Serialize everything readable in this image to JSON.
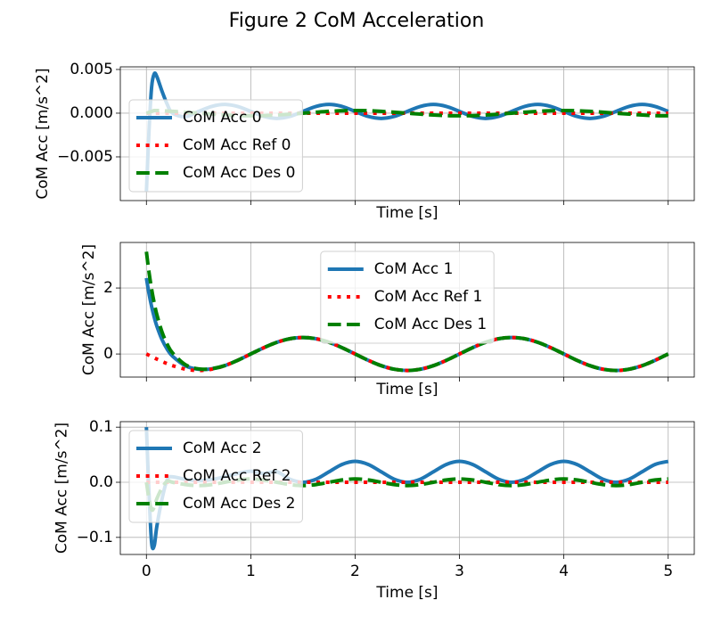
{
  "title": "Figure 2 CoM Acceleration",
  "chart_data": [
    {
      "type": "line",
      "xlabel": "Time [s]",
      "ylabel": "CoM Acc [m/s^2]",
      "x": [
        0,
        0.025,
        0.05,
        0.075,
        0.1,
        0.15,
        0.2,
        0.25,
        0.375,
        0.5,
        0.625,
        0.75,
        0.875,
        1,
        1.125,
        1.25,
        1.375,
        1.5,
        1.625,
        1.75,
        1.875,
        2,
        2.125,
        2.25,
        2.375,
        2.5,
        2.625,
        2.75,
        2.875,
        3,
        3.125,
        3.25,
        3.375,
        3.5,
        3.625,
        3.75,
        3.875,
        4,
        4.125,
        4.25,
        4.375,
        4.5,
        4.625,
        4.75,
        4.875,
        5
      ],
      "series": [
        {
          "name": "CoM Acc 0",
          "color": "#1f77b4",
          "dash": "solid",
          "values": [
            -0.009,
            -0.002,
            0.003,
            0.0045,
            0.0042,
            0.0025,
            0.001,
            0,
            -0.0004,
            0.0002,
            0.00077,
            0.001,
            0.00077,
            0.0002,
            -0.00037,
            -0.0006,
            -0.00037,
            0.0002,
            0.00077,
            0.001,
            0.00077,
            0.0002,
            -0.00037,
            -0.0006,
            -0.00037,
            0.0002,
            0.00077,
            0.001,
            0.00077,
            0.0002,
            -0.00037,
            -0.0006,
            -0.00037,
            0.0002,
            0.00077,
            0.001,
            0.00077,
            0.0002,
            -0.00037,
            -0.0006,
            -0.00037,
            0.0002,
            0.00077,
            0.001,
            0.00077,
            0.0002
          ]
        },
        {
          "name": "CoM Acc Ref 0",
          "color": "#ff0000",
          "dash": "dotted",
          "values": [
            0,
            0,
            0,
            0,
            0,
            0,
            0,
            0,
            0,
            0,
            0,
            0,
            0,
            0,
            0,
            0,
            0,
            0,
            0,
            0,
            0,
            0,
            0,
            0,
            0,
            0,
            0,
            0,
            0,
            0,
            0,
            0,
            0,
            0,
            0,
            0,
            0,
            0,
            0,
            0,
            0,
            0,
            0,
            0,
            0,
            0
          ]
        },
        {
          "name": "CoM Acc Des 0",
          "color": "#008000",
          "dash": "dashed",
          "values": [
            0,
            0.0001,
            0.0002,
            0.0003,
            0.0003,
            0.0003,
            0.00024,
            0.00021,
            0.00011,
            0,
            -0.00011,
            -0.00021,
            -0.00028,
            -0.0003,
            -0.00028,
            -0.00021,
            -0.00011,
            0,
            0.00011,
            0.00021,
            0.00028,
            0.0003,
            0.00028,
            0.00021,
            0.00011,
            0,
            -0.00011,
            -0.00021,
            -0.00028,
            -0.0003,
            -0.00028,
            -0.00021,
            -0.00011,
            0,
            0.00011,
            0.00021,
            0.00028,
            0.0003,
            0.00028,
            0.00021,
            0.00011,
            0,
            -0.00011,
            -0.00021,
            -0.00028,
            -0.0003
          ]
        }
      ],
      "xlim": [
        -0.25,
        5.25
      ],
      "ylim": [
        -0.01,
        0.0053
      ],
      "xticks": [
        0,
        1,
        2,
        3,
        4,
        5
      ],
      "yticks": [
        {
          "value": -0.005,
          "label": "−0.005"
        },
        {
          "value": 0,
          "label": "0.000"
        },
        {
          "value": 0.005,
          "label": "0.005"
        }
      ],
      "show_xtick_labels": false,
      "grid": true,
      "legend_loc": "lower left"
    },
    {
      "type": "line",
      "xlabel": "Time [s]",
      "ylabel": "CoM Acc [m/s^2]",
      "x": [
        0,
        0.025,
        0.05,
        0.075,
        0.1,
        0.15,
        0.2,
        0.25,
        0.375,
        0.5,
        0.625,
        0.75,
        0.875,
        1,
        1.125,
        1.25,
        1.375,
        1.5,
        1.625,
        1.75,
        1.875,
        2,
        2.125,
        2.25,
        2.375,
        2.5,
        2.625,
        2.75,
        2.875,
        3,
        3.125,
        3.25,
        3.375,
        3.5,
        3.625,
        3.75,
        3.875,
        4,
        4.125,
        4.25,
        4.375,
        4.5,
        4.625,
        4.75,
        4.875,
        5
      ],
      "series": [
        {
          "name": "CoM Acc 1",
          "color": "#1f77b4",
          "dash": "solid",
          "values": [
            2.3,
            1.828,
            1.438,
            1.114,
            0.846,
            0.433,
            0.141,
            -0.067,
            -0.361,
            -0.464,
            -0.449,
            -0.354,
            -0.191,
            0,
            0.191,
            0.354,
            0.462,
            0.5,
            0.462,
            0.354,
            0.191,
            0,
            -0.191,
            -0.354,
            -0.462,
            -0.5,
            -0.462,
            -0.354,
            -0.191,
            0,
            0.191,
            0.354,
            0.462,
            0.5,
            0.462,
            0.354,
            0.191,
            0,
            -0.191,
            -0.354,
            -0.462,
            -0.5,
            -0.462,
            -0.354,
            -0.191,
            0
          ]
        },
        {
          "name": "CoM Acc Ref 1",
          "color": "#ff0000",
          "dash": "dotted",
          "values": [
            0,
            -0.039,
            -0.078,
            -0.117,
            -0.155,
            -0.227,
            -0.294,
            -0.354,
            -0.462,
            -0.5,
            -0.462,
            -0.354,
            -0.191,
            0,
            0.191,
            0.354,
            0.462,
            0.5,
            0.462,
            0.354,
            0.191,
            0,
            -0.191,
            -0.354,
            -0.462,
            -0.5,
            -0.462,
            -0.354,
            -0.191,
            0,
            0.191,
            0.354,
            0.462,
            0.5,
            0.462,
            0.354,
            0.191,
            0,
            -0.191,
            -0.354,
            -0.462,
            -0.5,
            -0.462,
            -0.354,
            -0.191,
            0
          ]
        },
        {
          "name": "CoM Acc Des 1",
          "color": "#008000",
          "dash": "dashed",
          "values": [
            3.1,
            2.478,
            1.965,
            1.542,
            1.194,
            0.663,
            0.292,
            0.034,
            -0.326,
            -0.452,
            -0.445,
            -0.354,
            -0.191,
            0,
            0.191,
            0.354,
            0.462,
            0.5,
            0.462,
            0.354,
            0.191,
            0,
            -0.191,
            -0.354,
            -0.462,
            -0.5,
            -0.462,
            -0.354,
            -0.191,
            0,
            0.191,
            0.354,
            0.462,
            0.5,
            0.462,
            0.354,
            0.191,
            0,
            -0.191,
            -0.354,
            -0.462,
            -0.5,
            -0.462,
            -0.354,
            -0.191,
            0
          ]
        }
      ],
      "xlim": [
        -0.25,
        5.25
      ],
      "ylim": [
        -0.7,
        3.38
      ],
      "xticks": [
        0,
        1,
        2,
        3,
        4,
        5
      ],
      "yticks": [
        0,
        2
      ],
      "show_xtick_labels": false,
      "grid": true,
      "legend_loc": "upper center"
    },
    {
      "type": "line",
      "xlabel": "Time [s]",
      "ylabel": "CoM Acc [m/s^2]",
      "x": [
        0,
        0.025,
        0.05,
        0.075,
        0.1,
        0.15,
        0.2,
        0.25,
        0.375,
        0.5,
        0.625,
        0.75,
        0.875,
        1,
        1.125,
        1.25,
        1.375,
        1.5,
        1.625,
        1.75,
        1.875,
        2,
        2.125,
        2.25,
        2.375,
        2.5,
        2.625,
        2.75,
        2.875,
        3,
        3.125,
        3.25,
        3.375,
        3.5,
        3.625,
        3.75,
        3.875,
        4,
        4.125,
        4.25,
        4.375,
        4.5,
        4.625,
        4.75,
        4.875,
        5
      ],
      "series": [
        {
          "name": "CoM Acc 2",
          "color": "#1f77b4",
          "dash": "solid",
          "values": [
            0.1,
            -0.02,
            -0.11,
            -0.115,
            -0.08,
            -0.03,
            0.005,
            0.01,
            0.005,
            0.003,
            0.005,
            0.01,
            0.016,
            0.02,
            0.016,
            0.019,
            0.0056,
            0,
            0.0056,
            0.019,
            0.0324,
            0.038,
            0.0324,
            0.019,
            0.0056,
            0,
            0.0056,
            0.019,
            0.0324,
            0.038,
            0.0324,
            0.019,
            0.0056,
            0,
            0.0056,
            0.019,
            0.0324,
            0.038,
            0.0324,
            0.019,
            0.0056,
            0,
            0.0056,
            0.019,
            0.0324,
            0.038
          ]
        },
        {
          "name": "CoM Acc Ref 2",
          "color": "#ff0000",
          "dash": "dotted",
          "values": [
            0,
            0,
            0,
            0,
            0,
            0,
            0,
            0,
            0,
            0,
            0,
            0,
            0,
            0,
            0,
            0,
            0,
            0,
            0,
            0,
            0,
            0,
            0,
            0,
            0,
            0,
            0,
            0,
            0,
            0,
            0,
            0,
            0,
            0,
            0,
            0,
            0,
            0,
            0,
            0,
            0,
            0,
            0,
            0,
            0,
            0
          ]
        },
        {
          "name": "CoM Acc Des 2",
          "color": "#008000",
          "dash": "dashed",
          "values": [
            0,
            -0.03,
            -0.05,
            -0.045,
            -0.03,
            -0.01,
            0.002,
            0,
            -0.0042,
            -0.006,
            -0.0042,
            0,
            0.0042,
            0.006,
            0.0042,
            0,
            -0.0042,
            -0.006,
            -0.0042,
            0,
            0.0042,
            0.006,
            0.0042,
            0,
            -0.0042,
            -0.006,
            -0.0042,
            0,
            0.0042,
            0.006,
            0.0042,
            0,
            -0.0042,
            -0.006,
            -0.0042,
            0,
            0.0042,
            0.006,
            0.0042,
            0,
            -0.0042,
            -0.006,
            -0.0042,
            0,
            0.0042,
            0.006
          ]
        }
      ],
      "xlim": [
        -0.25,
        5.25
      ],
      "ylim": [
        -0.131,
        0.11
      ],
      "xticks": [
        0,
        1,
        2,
        3,
        4,
        5
      ],
      "yticks": [
        {
          "value": -0.1,
          "label": "−0.1"
        },
        {
          "value": 0,
          "label": "0.0"
        },
        {
          "value": 0.1,
          "label": "0.1"
        }
      ],
      "show_xtick_labels": true,
      "grid": true,
      "legend_loc": "upper left"
    }
  ]
}
